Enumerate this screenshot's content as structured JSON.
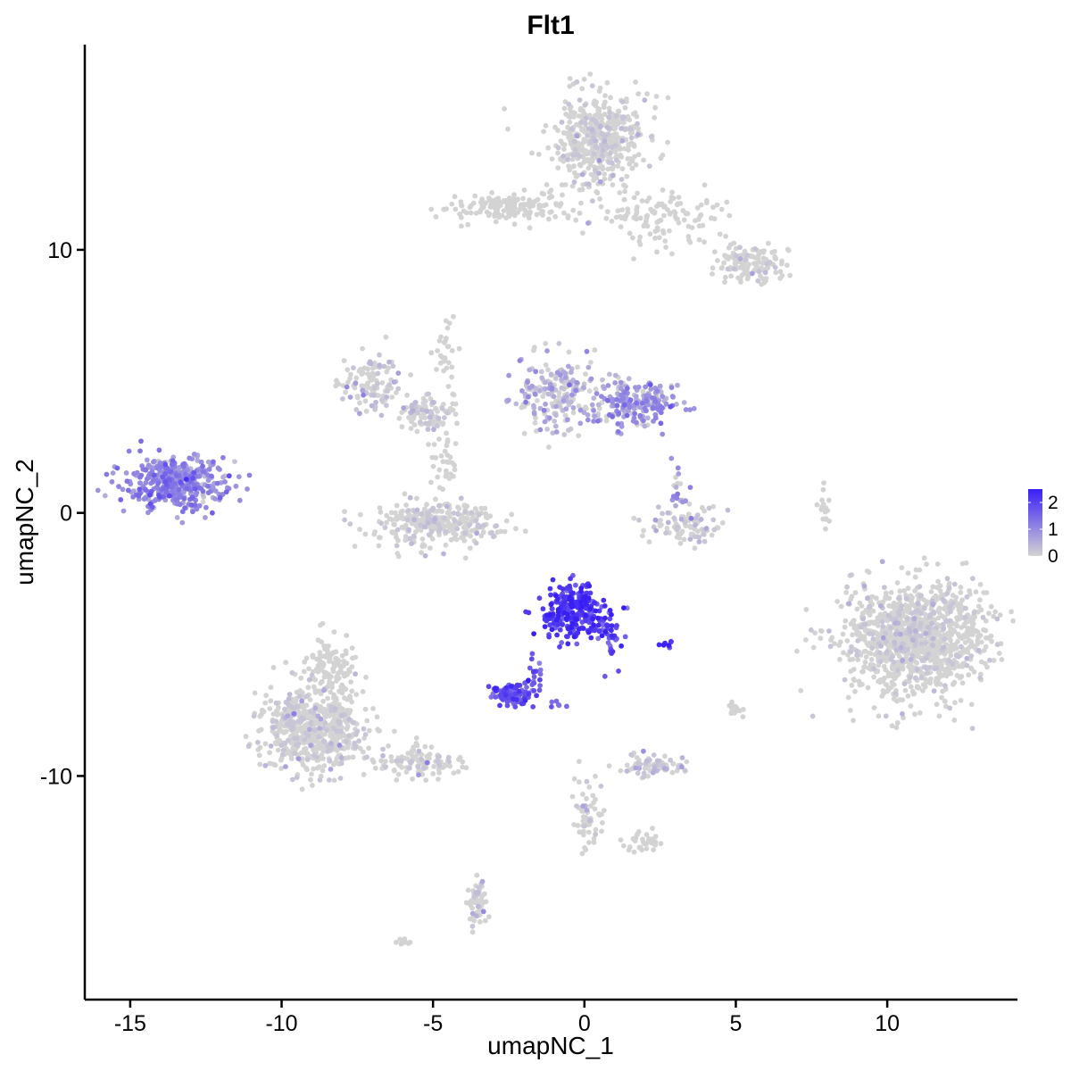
{
  "chart_data": {
    "type": "scatter",
    "title": "Flt1",
    "xlabel": "umapNC_1",
    "ylabel": "umapNC_2",
    "xlim": [
      -16.5,
      14.3
    ],
    "ylim": [
      -18.5,
      17.8
    ],
    "x_ticks": [
      -15,
      -10,
      -5,
      0,
      5,
      10
    ],
    "x_tick_labels": [
      "-15",
      "-10",
      "-5",
      "0",
      "5",
      "10"
    ],
    "y_ticks": [
      -10,
      0,
      10
    ],
    "y_tick_labels": [
      "-10",
      "0",
      "10"
    ],
    "grid": false,
    "legend": {
      "placement": "right",
      "type": "colorbar",
      "ticks": [
        0,
        1,
        2
      ],
      "tick_labels": [
        "0",
        "1",
        "2"
      ],
      "range": [
        0,
        2.5
      ],
      "low_color": "#d3d3d3",
      "high_color": "#3a1ff5"
    },
    "point_color_default": "#d3d3d3",
    "clusters": [
      {
        "cx": 0.5,
        "cy": 14.2,
        "sx": 1.0,
        "sy": 1.1,
        "n": 520,
        "expr": 0.02
      },
      {
        "cx": -2.5,
        "cy": 11.6,
        "sx": 1.3,
        "sy": 0.4,
        "n": 160,
        "expr": 0.0
      },
      {
        "cx": 2.6,
        "cy": 11.3,
        "sx": 1.6,
        "sy": 0.7,
        "n": 130,
        "expr": 0.0
      },
      {
        "cx": 5.5,
        "cy": 9.5,
        "sx": 0.8,
        "sy": 0.5,
        "n": 130,
        "expr": 0.02
      },
      {
        "cx": -7.0,
        "cy": 5.0,
        "sx": 0.7,
        "sy": 0.7,
        "n": 110,
        "expr": 0.3
      },
      {
        "cx": -5.3,
        "cy": 3.8,
        "sx": 0.7,
        "sy": 0.4,
        "n": 110,
        "expr": 0.1
      },
      {
        "cx": -4.6,
        "cy": 6.0,
        "sx": 0.25,
        "sy": 1.2,
        "n": 30,
        "expr": 0.0
      },
      {
        "cx": -0.9,
        "cy": 4.5,
        "sx": 0.9,
        "sy": 0.9,
        "n": 200,
        "expr": 0.5
      },
      {
        "cx": 1.7,
        "cy": 4.2,
        "sx": 1.0,
        "sy": 0.6,
        "n": 220,
        "expr": 0.8
      },
      {
        "cx": -13.5,
        "cy": 1.1,
        "sx": 1.0,
        "sy": 0.7,
        "n": 430,
        "expr": 1.0
      },
      {
        "cx": -5.0,
        "cy": -0.4,
        "sx": 1.4,
        "sy": 0.5,
        "n": 330,
        "expr": 0.05
      },
      {
        "cx": -4.6,
        "cy": 1.8,
        "sx": 0.3,
        "sy": 0.8,
        "n": 35,
        "expr": 0.0
      },
      {
        "cx": 3.3,
        "cy": -0.4,
        "sx": 0.9,
        "sy": 0.5,
        "n": 90,
        "expr": 0.3
      },
      {
        "cx": 3.1,
        "cy": 0.8,
        "sx": 0.2,
        "sy": 0.5,
        "n": 20,
        "expr": 0.8
      },
      {
        "cx": 7.9,
        "cy": 0.2,
        "sx": 0.12,
        "sy": 0.6,
        "n": 16,
        "expr": 0.0
      },
      {
        "cx": -0.3,
        "cy": -3.8,
        "sx": 0.7,
        "sy": 0.7,
        "n": 260,
        "expr": 2.1
      },
      {
        "cx": 0.9,
        "cy": -4.7,
        "sx": 0.3,
        "sy": 0.7,
        "n": 30,
        "expr": 2.0
      },
      {
        "cx": -2.4,
        "cy": -6.9,
        "sx": 0.4,
        "sy": 0.25,
        "n": 110,
        "expr": 1.7
      },
      {
        "cx": -1.6,
        "cy": -6.1,
        "sx": 0.25,
        "sy": 0.4,
        "n": 20,
        "expr": 1.6
      },
      {
        "cx": 2.8,
        "cy": -5.0,
        "sx": 0.15,
        "sy": 0.08,
        "n": 8,
        "expr": 2.2
      },
      {
        "cx": -0.9,
        "cy": -7.3,
        "sx": 0.15,
        "sy": 0.15,
        "n": 6,
        "expr": 1.5
      },
      {
        "cx": 11.0,
        "cy": -4.8,
        "sx": 1.6,
        "sy": 1.4,
        "n": 1200,
        "expr": 0.01
      },
      {
        "cx": -8.9,
        "cy": -8.2,
        "sx": 1.1,
        "sy": 1.0,
        "n": 650,
        "expr": 0.01
      },
      {
        "cx": -8.4,
        "cy": -5.9,
        "sx": 0.5,
        "sy": 0.7,
        "n": 120,
        "expr": 0.0
      },
      {
        "cx": -5.6,
        "cy": -9.5,
        "sx": 1.0,
        "sy": 0.5,
        "n": 110,
        "expr": 0.1
      },
      {
        "cx": 2.3,
        "cy": -9.6,
        "sx": 0.8,
        "sy": 0.25,
        "n": 80,
        "expr": 0.3
      },
      {
        "cx": 0.1,
        "cy": -11.5,
        "sx": 0.3,
        "sy": 0.8,
        "n": 60,
        "expr": 0.1
      },
      {
        "cx": 2.0,
        "cy": -12.5,
        "sx": 0.4,
        "sy": 0.25,
        "n": 35,
        "expr": 0.0
      },
      {
        "cx": -3.5,
        "cy": -14.8,
        "sx": 0.25,
        "sy": 0.7,
        "n": 55,
        "expr": 0.2
      },
      {
        "cx": 5.0,
        "cy": -7.4,
        "sx": 0.15,
        "sy": 0.2,
        "n": 15,
        "expr": 0.1
      },
      {
        "cx": -5.9,
        "cy": -16.3,
        "sx": 0.15,
        "sy": 0.1,
        "n": 8,
        "expr": 0.0
      }
    ]
  }
}
